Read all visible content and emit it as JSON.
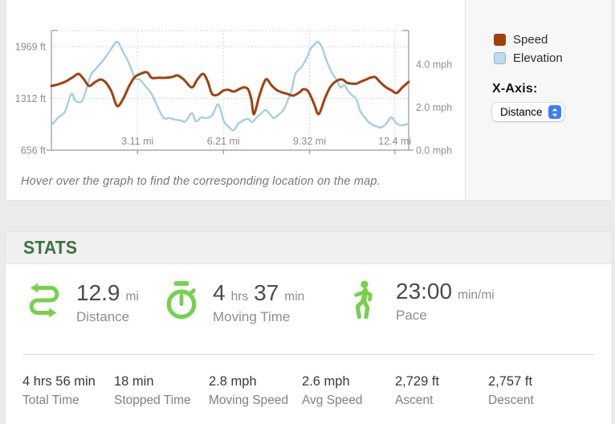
{
  "chart_panel": {
    "hover_note": "Hover over the graph to find the corresponding location on the map.",
    "x_axis_control": {
      "label": "X-Axis:",
      "value": "Distance",
      "stepper_color": "#3e7df7"
    }
  },
  "chart_data": {
    "type": "line",
    "title": "",
    "grid": "dotted",
    "legend_position": "right",
    "x_axis": {
      "unit": "mi",
      "range": [
        0,
        12.9
      ],
      "ticks": [
        {
          "v": 3.11,
          "label": "3.11 mi"
        },
        {
          "v": 6.21,
          "label": "6.21 mi"
        },
        {
          "v": 9.32,
          "label": "9.32 mi"
        },
        {
          "v": 12.4,
          "label": "12.4 mi"
        }
      ]
    },
    "y_left": {
      "name": "Elevation",
      "unit": "ft",
      "range": [
        656,
        2173
      ],
      "ticks": [
        {
          "v": 1969,
          "label": "1969 ft",
          "grid": true
        },
        {
          "v": 1312,
          "label": "1312 ft",
          "grid": true
        },
        {
          "v": 656,
          "label": "656 ft",
          "grid": false
        }
      ]
    },
    "y_right": {
      "name": "Speed",
      "unit": "mph",
      "range": [
        0,
        5.57
      ],
      "ticks": [
        {
          "v": 4.0,
          "label": "4.0 mph"
        },
        {
          "v": 2.0,
          "label": "2.0 mph"
        },
        {
          "v": 0.0,
          "label": "0.0 mph"
        }
      ]
    },
    "legend": [
      {
        "label": "Speed",
        "color": "#a2400e"
      },
      {
        "label": "Elevation",
        "color": "#bedbea",
        "border": "#8fb7cd"
      }
    ],
    "series": [
      {
        "name": "Speed",
        "axis": "right",
        "color": "#a2400e",
        "width": 3,
        "points": [
          [
            0,
            2.99
          ],
          [
            0.26,
            3.07
          ],
          [
            0.49,
            3.18
          ],
          [
            0.78,
            3.4
          ],
          [
            0.98,
            3.55
          ],
          [
            1.18,
            3.29
          ],
          [
            1.36,
            2.99
          ],
          [
            1.59,
            3.18
          ],
          [
            1.79,
            3.29
          ],
          [
            1.97,
            3.14
          ],
          [
            2.17,
            2.73
          ],
          [
            2.37,
            2.06
          ],
          [
            2.58,
            2.36
          ],
          [
            2.81,
            2.99
          ],
          [
            3.01,
            3.4
          ],
          [
            3.21,
            3.55
          ],
          [
            3.45,
            3.63
          ],
          [
            3.62,
            3.37
          ],
          [
            3.85,
            3.37
          ],
          [
            4.11,
            3.37
          ],
          [
            4.35,
            3.4
          ],
          [
            4.55,
            3.48
          ],
          [
            4.78,
            3.29
          ],
          [
            5.07,
            2.92
          ],
          [
            5.27,
            3.29
          ],
          [
            5.48,
            3.55
          ],
          [
            5.65,
            3.18
          ],
          [
            5.8,
            2.62
          ],
          [
            6.0,
            2.58
          ],
          [
            6.2,
            2.77
          ],
          [
            6.38,
            2.81
          ],
          [
            6.58,
            2.73
          ],
          [
            6.78,
            2.84
          ],
          [
            6.93,
            2.92
          ],
          [
            7.1,
            2.84
          ],
          [
            7.22,
            2.36
          ],
          [
            7.3,
            1.68
          ],
          [
            7.42,
            2.09
          ],
          [
            7.51,
            2.54
          ],
          [
            7.74,
            3.29
          ],
          [
            7.94,
            3.03
          ],
          [
            8.12,
            2.81
          ],
          [
            8.32,
            2.69
          ],
          [
            8.52,
            2.62
          ],
          [
            8.73,
            2.54
          ],
          [
            8.96,
            2.69
          ],
          [
            9.1,
            2.84
          ],
          [
            9.28,
            2.73
          ],
          [
            9.48,
            2.17
          ],
          [
            9.65,
            1.68
          ],
          [
            9.86,
            2.36
          ],
          [
            10.06,
            2.92
          ],
          [
            10.29,
            3.22
          ],
          [
            10.5,
            3.29
          ],
          [
            10.67,
            3.14
          ],
          [
            10.82,
            3.1
          ],
          [
            11.02,
            3.1
          ],
          [
            11.16,
            3.18
          ],
          [
            11.37,
            3.29
          ],
          [
            11.51,
            3.37
          ],
          [
            11.69,
            3.4
          ],
          [
            11.89,
            3.14
          ],
          [
            12.09,
            2.92
          ],
          [
            12.3,
            2.77
          ],
          [
            12.47,
            2.66
          ],
          [
            12.67,
            2.92
          ],
          [
            12.9,
            3.18
          ]
        ]
      },
      {
        "name": "Elevation",
        "axis": "left",
        "color": "#a5cee4",
        "width": 2.4,
        "points": [
          [
            0.05,
            992
          ],
          [
            0.26,
            1073
          ],
          [
            0.49,
            1145
          ],
          [
            0.72,
            1369
          ],
          [
            0.86,
            1287
          ],
          [
            1.07,
            1267
          ],
          [
            1.21,
            1369
          ],
          [
            1.42,
            1603
          ],
          [
            1.65,
            1704
          ],
          [
            1.94,
            1827
          ],
          [
            2.14,
            1929
          ],
          [
            2.37,
            2030
          ],
          [
            2.58,
            1908
          ],
          [
            2.81,
            1755
          ],
          [
            3.01,
            1572
          ],
          [
            3.19,
            1552
          ],
          [
            3.39,
            1470
          ],
          [
            3.62,
            1369
          ],
          [
            3.85,
            1196
          ],
          [
            4.06,
            1063
          ],
          [
            4.26,
            1063
          ],
          [
            4.46,
            1043
          ],
          [
            4.66,
            1033
          ],
          [
            4.84,
            1022
          ],
          [
            5.07,
            1124
          ],
          [
            5.22,
            1022
          ],
          [
            5.42,
            1073
          ],
          [
            5.59,
            1063
          ],
          [
            5.8,
            1094
          ],
          [
            6.0,
            1236
          ],
          [
            6.11,
            1165
          ],
          [
            6.23,
            1022
          ],
          [
            6.4,
            951
          ],
          [
            6.58,
            910
          ],
          [
            6.75,
            992
          ],
          [
            6.93,
            1033
          ],
          [
            7.1,
            1053
          ],
          [
            7.25,
            1012
          ],
          [
            7.45,
            1084
          ],
          [
            7.62,
            1134
          ],
          [
            7.74,
            1165
          ],
          [
            7.91,
            1104
          ],
          [
            8.03,
            1063
          ],
          [
            8.23,
            1114
          ],
          [
            8.38,
            1165
          ],
          [
            8.52,
            1277
          ],
          [
            8.67,
            1409
          ],
          [
            8.81,
            1623
          ],
          [
            9.02,
            1704
          ],
          [
            9.19,
            1806
          ],
          [
            9.36,
            1939
          ],
          [
            9.54,
            2010
          ],
          [
            9.63,
            2030
          ],
          [
            9.77,
            1959
          ],
          [
            9.92,
            1806
          ],
          [
            10.15,
            1623
          ],
          [
            10.29,
            1552
          ],
          [
            10.44,
            1450
          ],
          [
            10.58,
            1481
          ],
          [
            10.73,
            1399
          ],
          [
            10.87,
            1348
          ],
          [
            11.02,
            1297
          ],
          [
            11.16,
            1145
          ],
          [
            11.31,
            1073
          ],
          [
            11.45,
            1012
          ],
          [
            11.63,
            971
          ],
          [
            11.8,
            951
          ],
          [
            11.89,
            941
          ],
          [
            12.09,
            992
          ],
          [
            12.26,
            1073
          ],
          [
            12.38,
            1033
          ],
          [
            12.47,
            992
          ],
          [
            12.67,
            971
          ],
          [
            12.79,
            981
          ],
          [
            12.9,
            992
          ]
        ]
      }
    ]
  },
  "stats": {
    "title": "STATS",
    "accent_green": "#76d14b",
    "title_green": "#3c7240",
    "primary": [
      {
        "icon": "route-icon",
        "label": "Distance",
        "value_segments": [
          {
            "text": "12.9",
            "size": "lg"
          },
          {
            "text": "mi",
            "size": "sm"
          }
        ]
      },
      {
        "icon": "stopwatch-icon",
        "label": "Moving Time",
        "value_segments": [
          {
            "text": "4",
            "size": "lg"
          },
          {
            "text": "hrs",
            "size": "sm"
          },
          {
            "text": "37",
            "size": "lg"
          },
          {
            "text": "min",
            "size": "sm"
          }
        ]
      },
      {
        "icon": "hiker-icon",
        "label": "Pace",
        "value_segments": [
          {
            "text": "23:00",
            "size": "lg"
          },
          {
            "text": "min/mi",
            "size": "sm"
          }
        ]
      }
    ],
    "secondary": [
      {
        "value": "4 hrs 56 min",
        "label": "Total Time"
      },
      {
        "value": "18 min",
        "label": "Stopped Time"
      },
      {
        "value": "2.8 mph",
        "label": "Moving Speed"
      },
      {
        "value": "2.6 mph",
        "label": "Avg Speed"
      },
      {
        "value": "2,729 ft",
        "label": "Ascent"
      },
      {
        "value": "2,757 ft",
        "label": "Descent"
      }
    ]
  }
}
